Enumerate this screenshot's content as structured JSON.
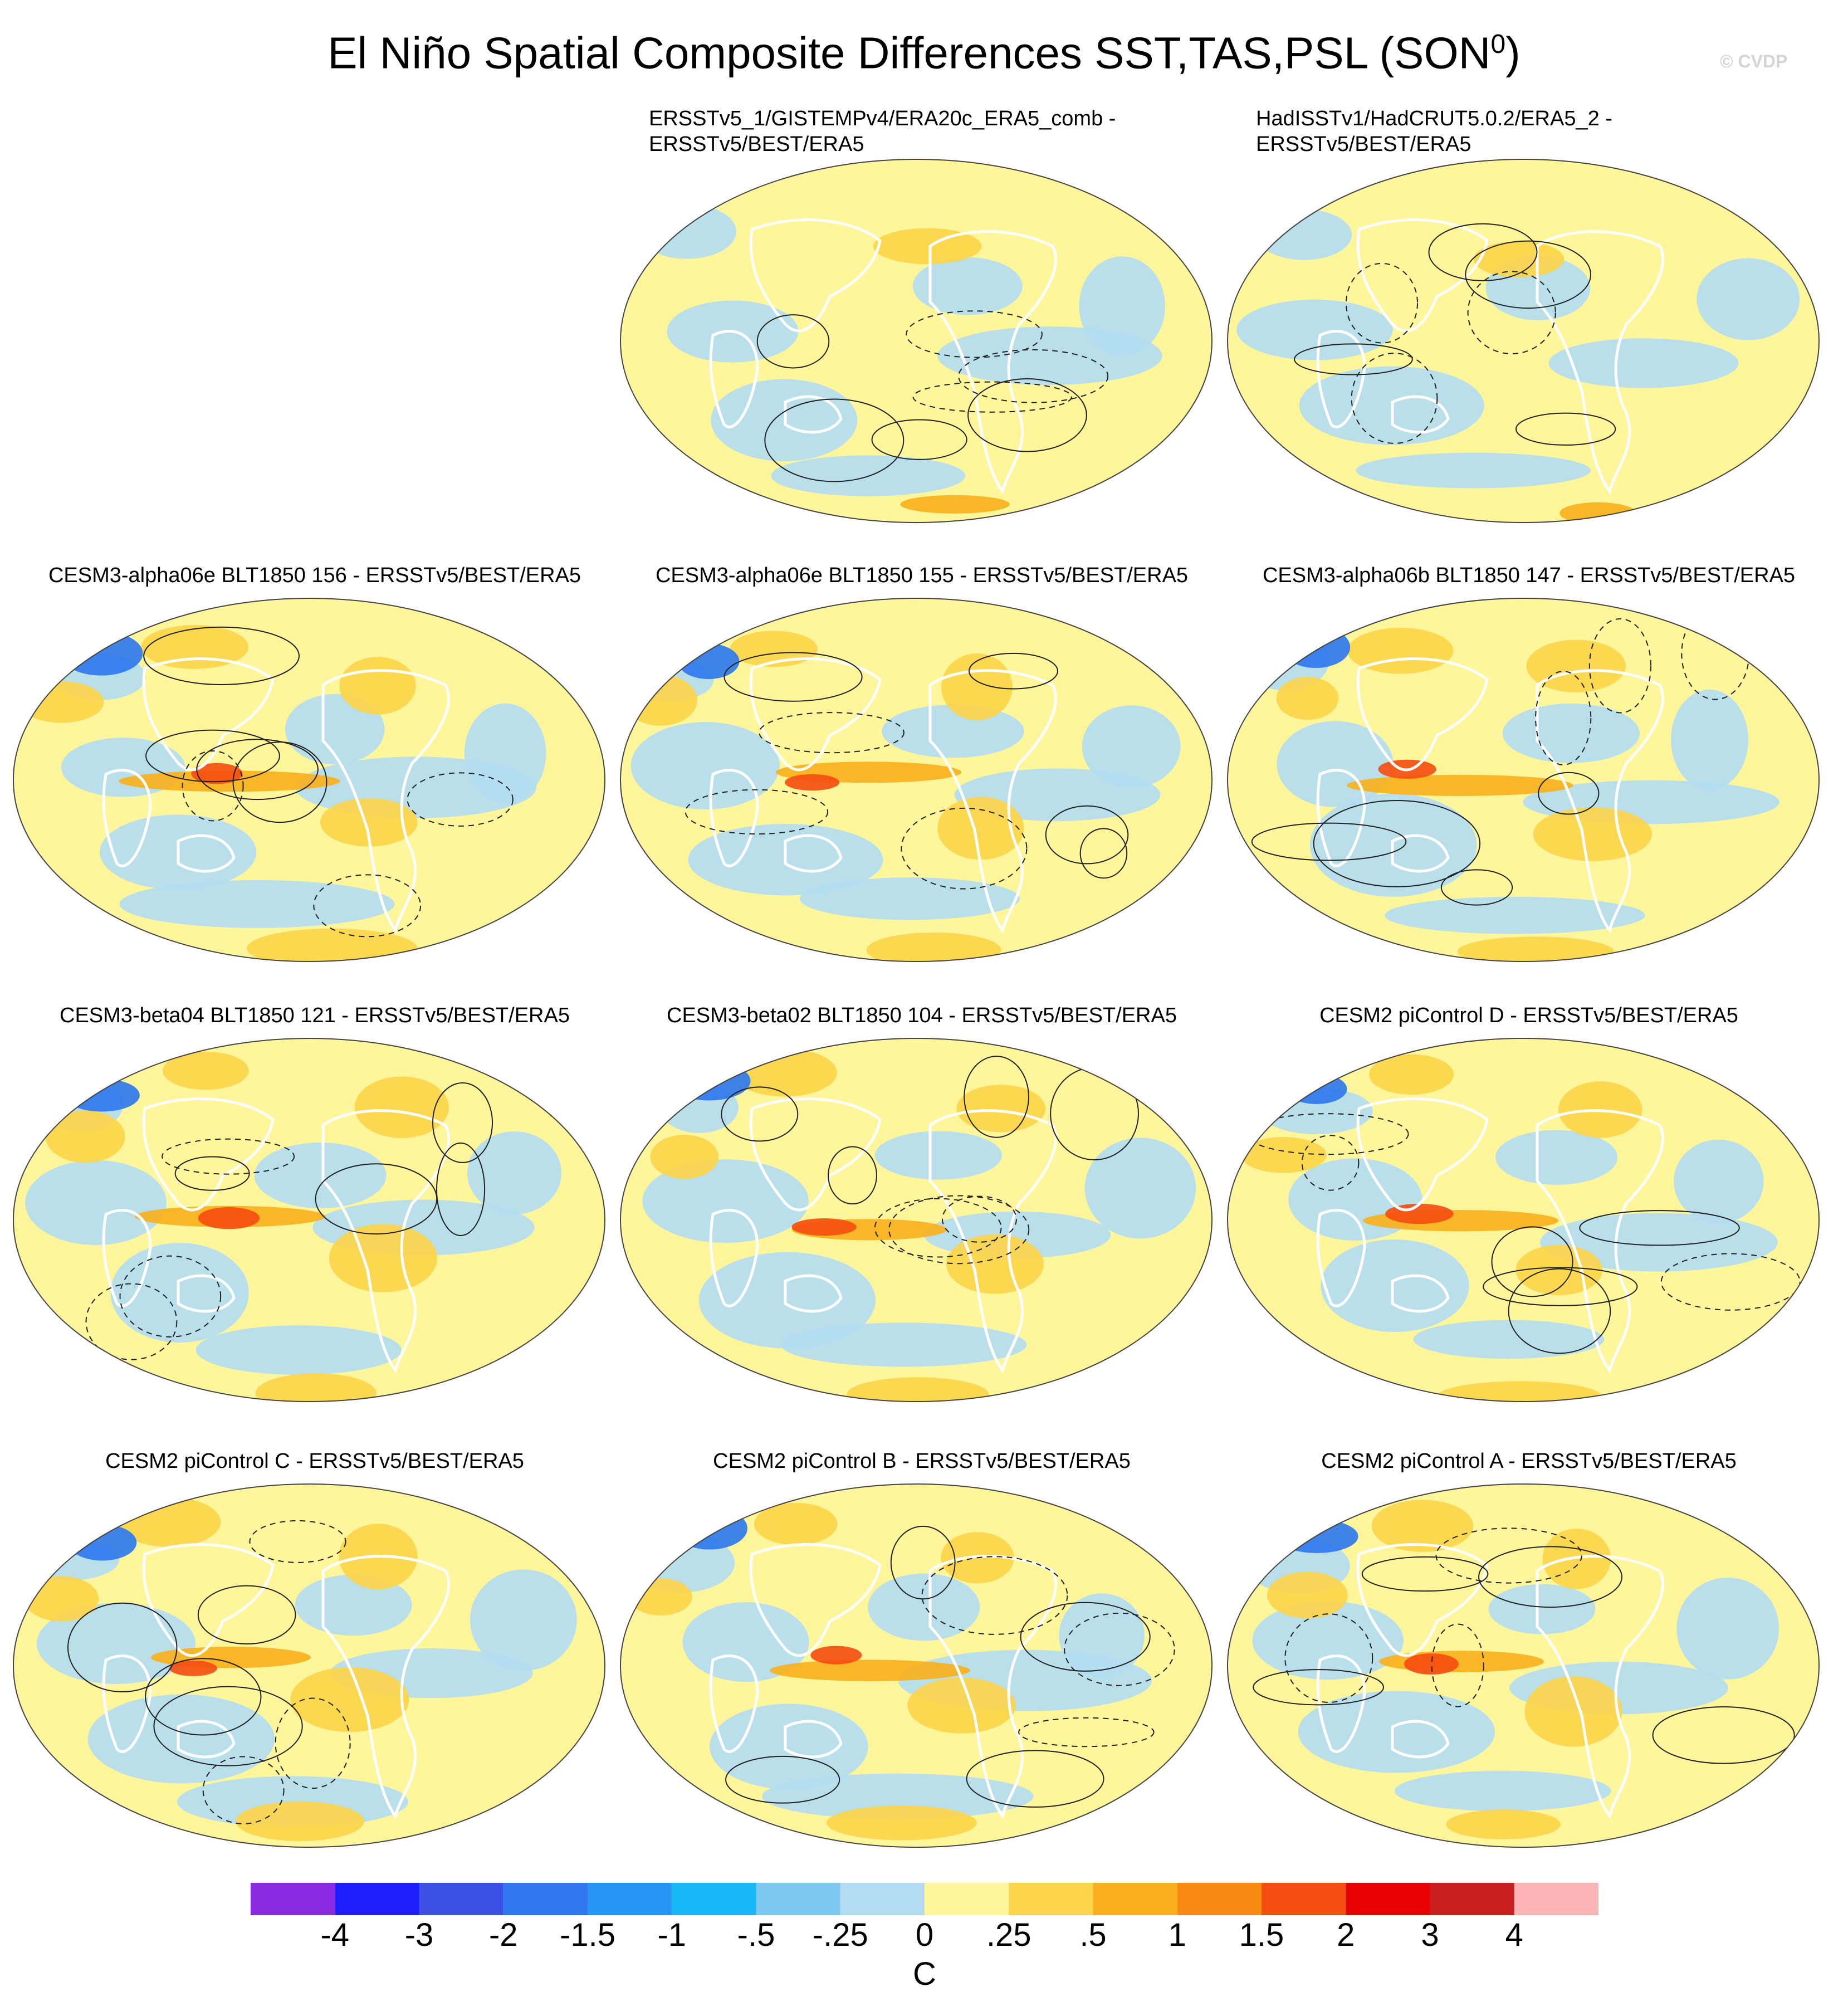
{
  "title": "El Niño Spatial Composite Differences SST,TAS,PSL (SON",
  "title_sup": "0",
  "title_close": ")",
  "watermark": "© CVDP",
  "panels": [
    {
      "title": "ERSSTv5_1/GISTEMPv4/ERA20c_ERA5_comb -\nERSSTv5/BEST/ERA5",
      "row": 0,
      "col": 1,
      "tone": "mild"
    },
    {
      "title": "HadISSTv1/HadCRUT5.0.2/ERA5_2 -\nERSSTv5/BEST/ERA5",
      "row": 0,
      "col": 2,
      "tone": "mild"
    },
    {
      "title": "CESM3-alpha06e BLT1850 156 - ERSSTv5/BEST/ERA5",
      "row": 1,
      "col": 0,
      "tone": "strong"
    },
    {
      "title": "CESM3-alpha06e BLT1850 155 - ERSSTv5/BEST/ERA5",
      "row": 1,
      "col": 1,
      "tone": "strong"
    },
    {
      "title": "CESM3-alpha06b BLT1850 147 - ERSSTv5/BEST/ERA5",
      "row": 1,
      "col": 2,
      "tone": "strong"
    },
    {
      "title": "CESM3-beta04 BLT1850 121 - ERSSTv5/BEST/ERA5",
      "row": 2,
      "col": 0,
      "tone": "strong"
    },
    {
      "title": "CESM3-beta02 BLT1850 104 - ERSSTv5/BEST/ERA5",
      "row": 2,
      "col": 1,
      "tone": "strong"
    },
    {
      "title": "CESM2 piControl D - ERSSTv5/BEST/ERA5",
      "row": 2,
      "col": 2,
      "tone": "strong"
    },
    {
      "title": "CESM2 piControl C - ERSSTv5/BEST/ERA5",
      "row": 3,
      "col": 0,
      "tone": "strong"
    },
    {
      "title": "CESM2 piControl B - ERSSTv5/BEST/ERA5",
      "row": 3,
      "col": 1,
      "tone": "strong"
    },
    {
      "title": "CESM2 piControl A - ERSSTv5/BEST/ERA5",
      "row": 3,
      "col": 2,
      "tone": "strong"
    }
  ],
  "colorbar": {
    "labels": [
      "-4",
      "-3",
      "-2",
      "-1.5",
      "-1",
      "-.5",
      "-.25",
      "0",
      ".25",
      ".5",
      "1",
      "1.5",
      "2",
      "3",
      "4"
    ],
    "colors": [
      "#8a2be2",
      "#1e1eff",
      "#3c50e6",
      "#2f78ee",
      "#2596f4",
      "#16b8f6",
      "#7dc8f0",
      "#b3dcf2",
      "#fff59a",
      "#fcd54a",
      "#f9b01c",
      "#f88a14",
      "#f54e10",
      "#e60000",
      "#c81e1e",
      "#fbb4b4"
    ],
    "unit": "C"
  }
}
